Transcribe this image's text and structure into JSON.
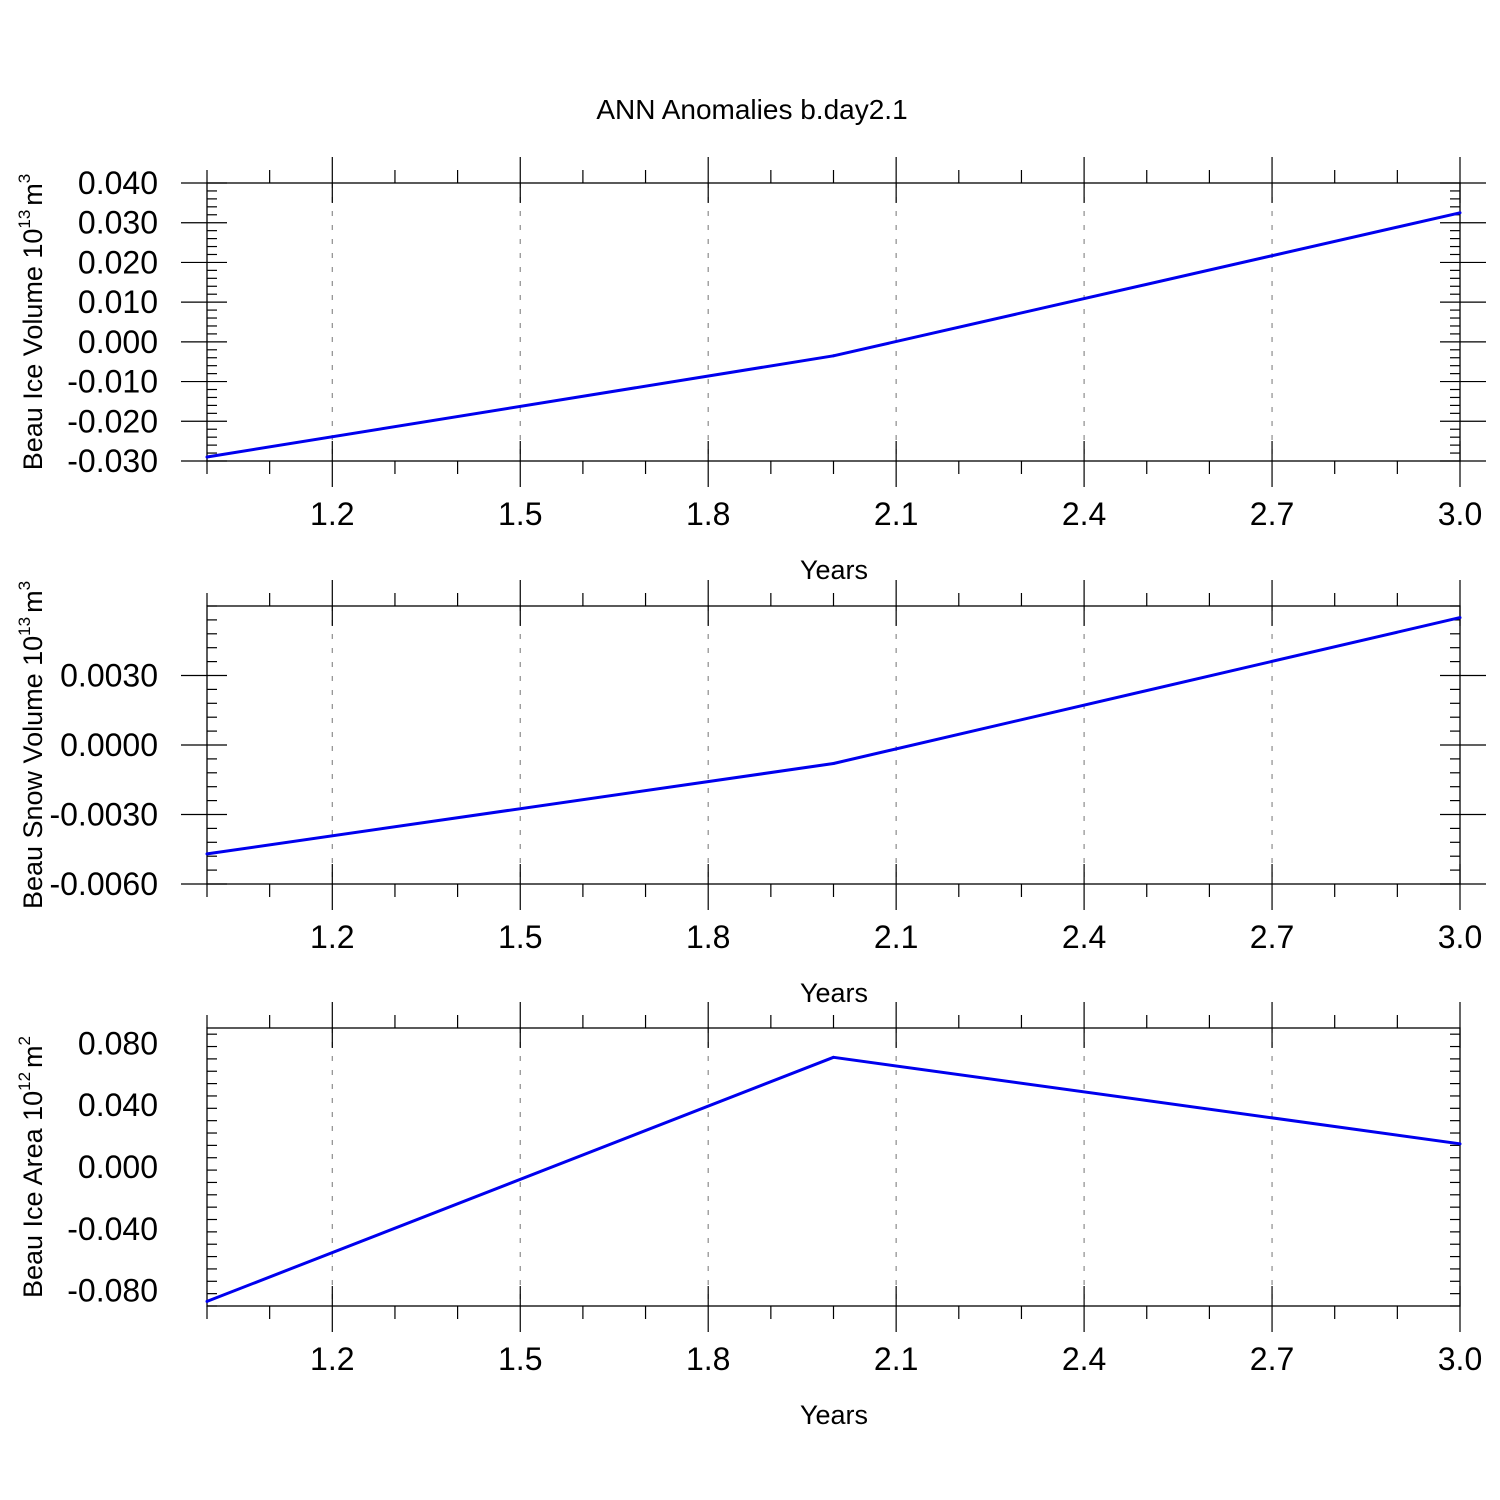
{
  "title": "ANN Anomalies b.day2.1",
  "colors": {
    "line": "#0000ee",
    "axis": "#000000",
    "grid": "#8c8c8c"
  },
  "chart_data": [
    {
      "type": "line",
      "ylabel": "Beau Ice Volume 10",
      "ylabel_exp": "13",
      "ylabel_unit": "m",
      "ylabel_unit_exp": "3",
      "xlabel": "Years",
      "x": [
        1,
        2,
        3
      ],
      "y": [
        -0.029,
        -0.0035,
        0.0325
      ],
      "xlim": [
        1.0,
        3.0
      ],
      "ylim": [
        -0.03,
        0.04
      ],
      "xticks": [
        "1.2",
        "1.5",
        "1.8",
        "2.1",
        "2.4",
        "2.7",
        "3.0"
      ],
      "yticks": [
        "-0.030",
        "-0.020",
        "-0.010",
        "0.000",
        "0.010",
        "0.020",
        "0.030",
        "0.040"
      ],
      "grid": "vertical dashed"
    },
    {
      "type": "line",
      "ylabel": "Beau Snow Volume 10",
      "ylabel_exp": "13",
      "ylabel_unit": "m",
      "ylabel_unit_exp": "3",
      "xlabel": "Years",
      "x": [
        1,
        2,
        3
      ],
      "y": [
        -0.0047,
        -0.0008,
        0.0055
      ],
      "xlim": [
        1.0,
        3.0
      ],
      "ylim": [
        -0.006,
        0.006
      ],
      "xticks": [
        "1.2",
        "1.5",
        "1.8",
        "2.1",
        "2.4",
        "2.7",
        "3.0"
      ],
      "yticks": [
        "-0.0060",
        "-0.0030",
        "0.0000",
        "0.0030"
      ],
      "grid": "vertical dashed"
    },
    {
      "type": "line",
      "ylabel": "Beau Ice Area 10",
      "ylabel_exp": "12",
      "ylabel_unit": "m",
      "ylabel_unit_exp": "2",
      "xlabel": "Years",
      "x": [
        1,
        2,
        3
      ],
      "y": [
        -0.087,
        0.071,
        0.015
      ],
      "xlim": [
        1.0,
        3.0
      ],
      "ylim": [
        -0.09,
        0.09
      ],
      "xticks": [
        "1.2",
        "1.5",
        "1.8",
        "2.1",
        "2.4",
        "2.7",
        "3.0"
      ],
      "yticks": [
        "-0.080",
        "-0.040",
        "0.000",
        "0.040",
        "0.080"
      ],
      "grid": "vertical dashed"
    }
  ]
}
